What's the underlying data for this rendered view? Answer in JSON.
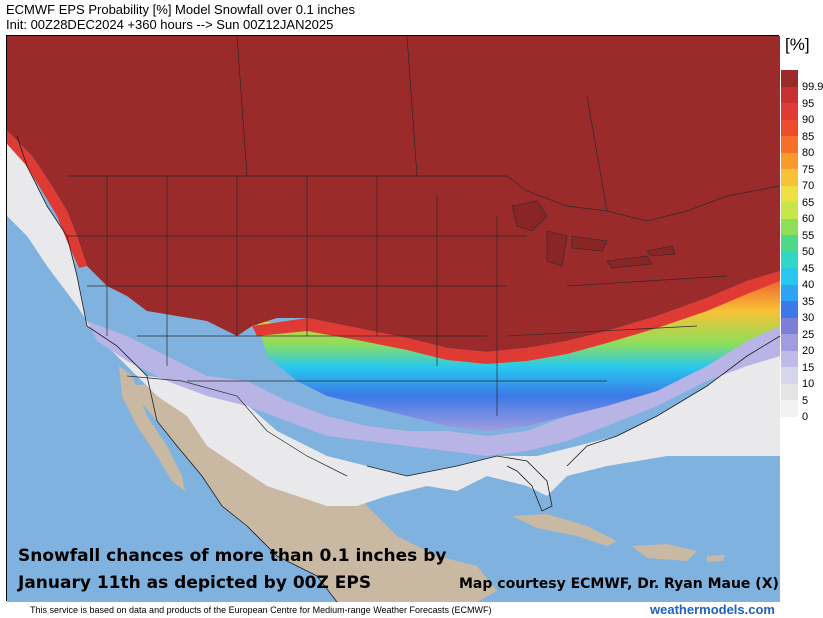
{
  "header": {
    "title": "ECMWF EPS Probability [%] Model Snowfall over 0.1 inches",
    "init": "Init: 00Z28DEC2024 +360 hours --> Sun 00Z12JAN2025"
  },
  "caption": {
    "line1": "Snowfall chances of more than 0.1 inches by",
    "line2": "January 11th as depicted by 00Z EPS",
    "credit": "Map courtesy ECMWF, Dr. Ryan Maue (X)"
  },
  "legend": {
    "unit": "[%]",
    "levels": [
      {
        "label": "99.9",
        "color": "#9b2a2a"
      },
      {
        "label": "95",
        "color": "#c73030"
      },
      {
        "label": "90",
        "color": "#e03a35"
      },
      {
        "label": "85",
        "color": "#ee4a2c"
      },
      {
        "label": "80",
        "color": "#f4702a"
      },
      {
        "label": "75",
        "color": "#f89a2c"
      },
      {
        "label": "70",
        "color": "#f9c236"
      },
      {
        "label": "65",
        "color": "#eee040"
      },
      {
        "label": "60",
        "color": "#c8e64a"
      },
      {
        "label": "55",
        "color": "#8fde5a"
      },
      {
        "label": "50",
        "color": "#4fd88a"
      },
      {
        "label": "45",
        "color": "#30d6c6"
      },
      {
        "label": "40",
        "color": "#28c8ee"
      },
      {
        "label": "35",
        "color": "#2ea2f3"
      },
      {
        "label": "30",
        "color": "#3c79e8"
      },
      {
        "label": "25",
        "color": "#7d7ed8"
      },
      {
        "label": "20",
        "color": "#a19bdf"
      },
      {
        "label": "15",
        "color": "#c0bae9"
      },
      {
        "label": "10",
        "color": "#d7d5ee"
      },
      {
        "label": "5",
        "color": "#e4e4e4"
      },
      {
        "label": "0",
        "color": "#f2f2f2"
      }
    ]
  },
  "colors": {
    "ocean": "#7fb2de",
    "land": "#c9b9a3",
    "border": "#2a2a2a",
    "brand": "#2060c0"
  },
  "footer": {
    "note": "This service is based on data and products of the European Centre for Medium-range Weather Forecasts (ECMWF)",
    "brand": "weathermodels.com"
  }
}
